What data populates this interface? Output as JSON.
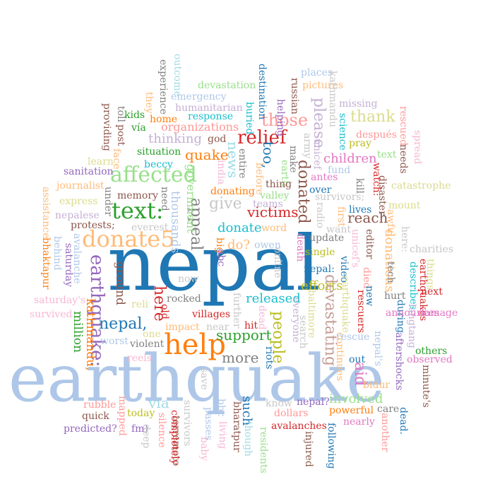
{
  "cloud": {
    "words": [
      {
        "id": "w-nepal",
        "text": "nepal",
        "color": "#1f77b4"
      },
      {
        "id": "w-earthquake",
        "text": "earthquake",
        "color": "#aec7e8"
      },
      {
        "id": "w-help",
        "text": "help",
        "color": "#ff7f0e"
      },
      {
        "id": "w-text",
        "text": "text:",
        "color": "#2ca02c"
      },
      {
        "id": "w-donate5",
        "text": "donate5",
        "color": "#ffbb78"
      },
      {
        "id": "w-affected",
        "text": "affected",
        "color": "#98df8a"
      },
      {
        "id": "w-earthquake-colon",
        "text": "earthquake:",
        "color": "#9467bd"
      },
      {
        "id": "w-relief",
        "text": "relief",
        "color": "#d62728"
      },
      {
        "id": "w-those",
        "text": "those",
        "color": "#ff9896"
      },
      {
        "id": "w-please",
        "text": "please",
        "color": "#c5b0d5"
      },
      {
        "id": "w-donated",
        "text": "donated",
        "color": "#8c564b"
      },
      {
        "id": "w-devastating",
        "text": "devastating",
        "color": "#c49c94"
      },
      {
        "id": "w-thank",
        "text": "thank",
        "color": "#dbdb8d"
      },
      {
        "id": "w-appeal",
        "text": "appeal",
        "color": "#7f7f7f"
      },
      {
        "id": "w-give",
        "text": "give",
        "color": "#c7c7c7"
      },
      {
        "id": "w-thinking",
        "text": "thinking",
        "color": "#c5b0d5"
      },
      {
        "id": "w-quake",
        "text": "quake",
        "color": "#ff7f0e"
      },
      {
        "id": "w-news",
        "text": "news",
        "color": "#9edae5"
      },
      {
        "id": "w-too",
        "text": "too,",
        "color": "#1f77b4"
      },
      {
        "id": "w-victims",
        "text": "victims",
        "color": "#d62728"
      },
      {
        "id": "w-donate",
        "text": "donate",
        "color": "#17becf"
      },
      {
        "id": "w-reach",
        "text": "reach",
        "color": "#8c564b"
      },
      {
        "id": "w-nepal-comma",
        "text": "nepal,",
        "color": "#1f77b4"
      },
      {
        "id": "w-here",
        "text": "here",
        "color": "#d62728"
      },
      {
        "id": "w-people",
        "text": "people",
        "color": "#bcbd22"
      },
      {
        "id": "w-support",
        "text": "support",
        "color": "#2ca02c"
      },
      {
        "id": "w-more",
        "text": "more",
        "color": "#7f7f7f"
      },
      {
        "id": "w-via",
        "text": "via",
        "color": "#9edae5"
      },
      {
        "id": "w-aid",
        "text": "aid",
        "color": "#e377c2"
      },
      {
        "id": "w-children",
        "text": "children",
        "color": "#e377c2"
      },
      {
        "id": "w-involved",
        "text": "involved",
        "color": "#98df8a"
      },
      {
        "id": "w-efforts",
        "text": "efforts",
        "color": "#bcbd22"
      },
      {
        "id": "w-donations",
        "text": "donations",
        "color": "#ffbb78"
      },
      {
        "id": "w-released",
        "text": "released",
        "color": "#17becf"
      },
      {
        "id": "w-million",
        "text": "million",
        "color": "#2ca02c"
      },
      {
        "id": "w-kathmandu-comma",
        "text": "kathmandu,",
        "color": "#ff7f0e"
      },
      {
        "id": "w-ground",
        "text": "ground",
        "color": "#8c564b"
      },
      {
        "id": "w-thousands",
        "text": "thousands",
        "color": "#aec7e8"
      },
      {
        "id": "w-government",
        "text": "government",
        "color": "#98df8a"
      },
      {
        "id": "w-organizations",
        "text": "organizations",
        "color": "#ff9896"
      },
      {
        "id": "w-destination",
        "text": "destination",
        "color": "#1f77b4"
      },
      {
        "id": "w-devastation",
        "text": "devastation",
        "color": "#98df8a"
      },
      {
        "id": "w-emergency",
        "text": "emergency",
        "color": "#aec7e8"
      },
      {
        "id": "w-humanitarian",
        "text": "humanitarian",
        "color": "#c5b0d5"
      },
      {
        "id": "w-response",
        "text": "response",
        "color": "#17becf"
      },
      {
        "id": "w-places",
        "text": "places",
        "color": "#aec7e8"
      },
      {
        "id": "w-pictures",
        "text": "pictures",
        "color": "#ffbb78"
      },
      {
        "id": "w-missing",
        "text": "missing",
        "color": "#c5b0d5"
      },
      {
        "id": "w-despues",
        "text": "después",
        "color": "#ff9896"
      },
      {
        "id": "w-rescued",
        "text": "rescued",
        "color": "#ff9896"
      },
      {
        "id": "w-spread",
        "text": "spread",
        "color": "#f7b6d2"
      },
      {
        "id": "w-outcome",
        "text": "outcome",
        "color": "#9edae5"
      },
      {
        "id": "w-experience",
        "text": "experience",
        "color": "#7f7f7f"
      },
      {
        "id": "w-they",
        "text": "they",
        "color": "#ffbb78"
      },
      {
        "id": "w-kids",
        "text": "kids",
        "color": "#2ca02c"
      },
      {
        "id": "w-via-2",
        "text": "vía",
        "color": "#2ca02c"
      },
      {
        "id": "w-home",
        "text": "home",
        "color": "#ff7f0e"
      },
      {
        "id": "w-situation",
        "text": "situation",
        "color": "#2ca02c"
      },
      {
        "id": "w-beccy",
        "text": "beccy",
        "color": "#17becf"
      },
      {
        "id": "w-god",
        "text": "god",
        "color": "#8c564b"
      },
      {
        "id": "w-buried",
        "text": "buried",
        "color": "#17becf"
      },
      {
        "id": "w-helping",
        "text": "helping",
        "color": "#9467bd"
      },
      {
        "id": "w-russian",
        "text": "russian",
        "color": "#8c564b"
      },
      {
        "id": "w-kathmandu",
        "text": "kathmandu",
        "color": "#c7c7c7"
      },
      {
        "id": "w-army",
        "text": "army",
        "color": "#c7c7c7"
      },
      {
        "id": "w-science",
        "text": "science",
        "color": "#17becf"
      },
      {
        "id": "w-pray",
        "text": "pray",
        "color": "#bcbd22"
      },
      {
        "id": "w-text-plain",
        "text": "text",
        "color": "#98df8a"
      },
      {
        "id": "w-needs",
        "text": "needs",
        "color": "#8c564b"
      },
      {
        "id": "w-post",
        "text": "post",
        "color": "#8c564b"
      },
      {
        "id": "w-toll",
        "text": "toll",
        "color": "#7f7f7f"
      },
      {
        "id": "w-providing",
        "text": "providing",
        "color": "#8c564b"
      },
      {
        "id": "w-face",
        "text": "face",
        "color": "#ffbb78"
      },
      {
        "id": "w-learn",
        "text": "learn",
        "color": "#dbdb8d"
      },
      {
        "id": "w-sanitation",
        "text": "sanitation",
        "color": "#9467bd"
      },
      {
        "id": "w-journalist",
        "text": "journalist",
        "color": "#ffbb78"
      },
      {
        "id": "w-express",
        "text": "express",
        "color": "#dbdb8d"
      },
      {
        "id": "w-nepalese",
        "text": "nepalese",
        "color": "#c5b0d5"
      },
      {
        "id": "w-protests",
        "text": "protests;",
        "color": "#8c564b"
      },
      {
        "id": "w-memory",
        "text": "memory",
        "color": "#8c564b"
      },
      {
        "id": "w-under",
        "text": "under",
        "color": "#7f7f7f"
      },
      {
        "id": "w-need",
        "text": "need",
        "color": "#7f7f7f"
      },
      {
        "id": "w-everest",
        "text": "everest",
        "color": "#c7c7c7"
      },
      {
        "id": "w-india",
        "text": "india",
        "color": "#f7b6d2"
      },
      {
        "id": "w-entire",
        "text": "entire",
        "color": "#7f7f7f"
      },
      {
        "id": "w-before",
        "text": "before",
        "color": "#ffbb78"
      },
      {
        "id": "w-earth",
        "text": "earth",
        "color": "#98df8a"
      },
      {
        "id": "w-make",
        "text": "make",
        "color": "#7f7f7f"
      },
      {
        "id": "w-unicef",
        "text": "unicef",
        "color": "#c5b0d5"
      },
      {
        "id": "w-fund",
        "text": "fund",
        "color": "#aec7e8"
      },
      {
        "id": "w-antes",
        "text": "antes",
        "color": "#e377c2"
      },
      {
        "id": "w-kill",
        "text": "kill",
        "color": "#7f7f7f"
      },
      {
        "id": "w-watch",
        "text": "watch:",
        "color": "#d62728"
      },
      {
        "id": "w-disaster",
        "text": "disaster",
        "color": "#8c564b"
      },
      {
        "id": "w-catastrophe",
        "text": "catastrophe",
        "color": "#dbdb8d"
      },
      {
        "id": "w-mount",
        "text": "mount",
        "color": "#dbdb8d"
      },
      {
        "id": "w-donating",
        "text": "donating",
        "color": "#ff7f0e"
      },
      {
        "id": "w-thing",
        "text": "thing",
        "color": "#8c564b"
      },
      {
        "id": "w-valley",
        "text": "valley",
        "color": "#98df8a"
      },
      {
        "id": "w-teams",
        "text": "teams",
        "color": "#c5b0d5"
      },
      {
        "id": "w-over",
        "text": "over",
        "color": "#1f77b4"
      },
      {
        "id": "w-survivors-semi",
        "text": "survivors;",
        "color": "#c7c7c7"
      },
      {
        "id": "w-radio",
        "text": "radio",
        "color": "#c7c7c7"
      },
      {
        "id": "w-lives",
        "text": "lives",
        "color": "#1f77b4"
      },
      {
        "id": "w-first",
        "text": "first",
        "color": "#ffbb78"
      },
      {
        "id": "w-want",
        "text": "want",
        "color": "#c7c7c7"
      },
      {
        "id": "w-awful",
        "text": "awful",
        "color": "#ffbb78"
      },
      {
        "id": "w-word",
        "text": "word",
        "color": "#ffbb78"
      },
      {
        "id": "w-big",
        "text": "big",
        "color": "#ff7f0e"
      },
      {
        "id": "w-do",
        "text": "do?",
        "color": "#ffbb78"
      },
      {
        "id": "w-owen",
        "text": "owen",
        "color": "#aec7e8"
      },
      {
        "id": "w-abc",
        "text": "abc",
        "color": "#9467bd"
      },
      {
        "id": "w-death",
        "text": "death",
        "color": "#e377c2"
      },
      {
        "id": "w-update",
        "text": "update",
        "color": "#7f7f7f"
      },
      {
        "id": "w-unicefs",
        "text": "unicef's",
        "color": "#f7b6d2"
      },
      {
        "id": "w-editor",
        "text": "editor",
        "color": "#8c564b"
      },
      {
        "id": "w-here-colon",
        "text": "here:",
        "color": "#c7c7c7"
      },
      {
        "id": "w-charities",
        "text": "charities",
        "color": "#c7c7c7"
      },
      {
        "id": "w-single",
        "text": "single",
        "color": "#bcbd22"
      },
      {
        "id": "w-online",
        "text": "online",
        "color": "#c7c7c7"
      },
      {
        "id": "w-tech",
        "text": "tech",
        "color": "#7f7f7f"
      },
      {
        "id": "w-died",
        "text": "died",
        "color": "#ff9896"
      },
      {
        "id": "w-earthquakes",
        "text": "earthquakes",
        "color": "#d62728"
      },
      {
        "id": "w-describes",
        "text": "describes",
        "color": "#17becf"
      },
      {
        "id": "w-things",
        "text": "things",
        "color": "#dbdb8d"
      },
      {
        "id": "w-next",
        "text": "next",
        "color": "#d62728"
      },
      {
        "id": "w-nepal-colon",
        "text": "nepal:",
        "color": "#1f77b4"
      },
      {
        "id": "w-video",
        "text": "video",
        "color": "#1f77b4"
      },
      {
        "id": "w-new",
        "text": "new",
        "color": "#1f77b4"
      },
      {
        "id": "w-hurt",
        "text": "hurt",
        "color": "#7f7f7f"
      },
      {
        "id": "w-rescuers",
        "text": "rescuers",
        "color": "#d62728"
      },
      {
        "id": "w-during",
        "text": "during",
        "color": "#1f77b4"
      },
      {
        "id": "w-announces",
        "text": "announces",
        "color": "#e377c2"
      },
      {
        "id": "w-langtang",
        "text": "langtang",
        "color": "#c5b0d5"
      },
      {
        "id": "w-damage",
        "text": "damage",
        "color": "#e377c2"
      },
      {
        "id": "w-now",
        "text": "now",
        "color": "#c7c7c7"
      },
      {
        "id": "w-rocked",
        "text": "rocked",
        "color": "#7f7f7f"
      },
      {
        "id": "w-villages",
        "text": "villages",
        "color": "#d62728"
      },
      {
        "id": "w-further",
        "text": "further",
        "color": "#c7c7c7"
      },
      {
        "id": "w-everyone",
        "text": "everyone",
        "color": "#c5b0d5"
      },
      {
        "id": "w-baltimore",
        "text": "baltimore",
        "color": "#dbdb8d"
      },
      {
        "id": "w-earthquake-comma",
        "text": "earthquake,",
        "color": "#dbdb8d"
      },
      {
        "id": "w-saturdays",
        "text": "saturday's",
        "color": "#f7b6d2"
      },
      {
        "id": "w-survived",
        "text": "survived",
        "color": "#f7b6d2"
      },
      {
        "id": "w-reli",
        "text": "reli",
        "color": "#dbdb8d"
      },
      {
        "id": "w-old",
        "text": "old",
        "color": "#d62728"
      },
      {
        "id": "w-impact",
        "text": "impact",
        "color": "#ffbb78"
      },
      {
        "id": "w-near",
        "text": "near",
        "color": "#c7c7c7"
      },
      {
        "id": "w-dead",
        "text": "dead",
        "color": "#f7b6d2"
      },
      {
        "id": "w-hit",
        "text": "hit",
        "color": "#d62728"
      },
      {
        "id": "w-search",
        "text": "search",
        "color": "#c7c7c7"
      },
      {
        "id": "w-rescue",
        "text": "rescue",
        "color": "#aec7e8"
      },
      {
        "id": "w-continues",
        "text": "continues",
        "color": "#ffbb78"
      },
      {
        "id": "w-nepals",
        "text": "nepal's",
        "color": "#aec7e8"
      },
      {
        "id": "w-aftershocks",
        "text": "aftershocks",
        "color": "#9467bd"
      },
      {
        "id": "w-minutes",
        "text": "minute's",
        "color": "#8c564b"
      },
      {
        "id": "w-others",
        "text": "others",
        "color": "#2ca02c"
      },
      {
        "id": "w-observed",
        "text": "observed",
        "color": "#e377c2"
      },
      {
        "id": "w-one",
        "text": "one",
        "color": "#dbdb8d"
      },
      {
        "id": "w-worst",
        "text": "worst",
        "color": "#aec7e8"
      },
      {
        "id": "w-violent",
        "text": "violent",
        "color": "#7f7f7f"
      },
      {
        "id": "w-reels",
        "text": "reels",
        "color": "#f7b6d2"
      },
      {
        "id": "w-riots",
        "text": "riots",
        "color": "#1f77b4"
      },
      {
        "id": "w-out",
        "text": "out",
        "color": "#1f77b4"
      },
      {
        "id": "w-bidur",
        "text": "bidur",
        "color": "#ffbb78"
      },
      {
        "id": "w-dead-dot",
        "text": "dead.",
        "color": "#1f77b4"
      },
      {
        "id": "w-care",
        "text": "care",
        "color": "#7f7f7f"
      },
      {
        "id": "w-another",
        "text": "another",
        "color": "#ff9896"
      },
      {
        "id": "w-rubble",
        "text": "rubble",
        "color": "#ff9896"
      },
      {
        "id": "w-quick",
        "text": "quick",
        "color": "#8c564b"
      },
      {
        "id": "w-today",
        "text": "today",
        "color": "#bcbd22"
      },
      {
        "id": "w-mapped",
        "text": "mapped",
        "color": "#ff9896"
      },
      {
        "id": "w-predicted",
        "text": "predicted?",
        "color": "#9467bd"
      },
      {
        "id": "w-fm",
        "text": "fm)",
        "color": "#9467bd"
      },
      {
        "id": "w-deep",
        "text": "deep",
        "color": "#c7c7c7"
      },
      {
        "id": "w-silence",
        "text": "silence",
        "color": "#ff9896"
      },
      {
        "id": "w-terremoto",
        "text": "terremoto",
        "color": "#8c564b"
      },
      {
        "id": "w-completely",
        "text": "completely",
        "color": "#d62728"
      },
      {
        "id": "w-survivors",
        "text": "survivors",
        "color": "#c7c7c7"
      },
      {
        "id": "w-save",
        "text": "save",
        "color": "#c7c7c7"
      },
      {
        "id": "w-baby",
        "text": "baby",
        "color": "#f7b6d2"
      },
      {
        "id": "w-passes",
        "text": "passes",
        "color": "#aec7e8"
      },
      {
        "id": "w-bbc",
        "text": "bbc",
        "color": "#aec7e8"
      },
      {
        "id": "w-living",
        "text": "living",
        "color": "#f7b6d2"
      },
      {
        "id": "w-bharatpur",
        "text": "bharatpur",
        "color": "#8c564b"
      },
      {
        "id": "w-such",
        "text": "such",
        "color": "#1f77b4"
      },
      {
        "id": "w-though",
        "text": "though",
        "color": "#9edae5"
      },
      {
        "id": "w-residents",
        "text": "residents",
        "color": "#98df8a"
      },
      {
        "id": "w-know",
        "text": "know",
        "color": "#c7c7c7"
      },
      {
        "id": "w-dollars",
        "text": "dollars",
        "color": "#ff9896"
      },
      {
        "id": "w-avalanches",
        "text": "avalanches",
        "color": "#d62728"
      },
      {
        "id": "w-nepal-q",
        "text": "nepal?",
        "color": "#9467bd"
      },
      {
        "id": "w-injured",
        "text": "injured",
        "color": "#8c564b"
      },
      {
        "id": "w-powerful",
        "text": "powerful",
        "color": "#ff7f0e"
      },
      {
        "id": "w-nearly",
        "text": "nearly",
        "color": "#e377c2"
      },
      {
        "id": "w-following",
        "text": "following",
        "color": "#1f77b4"
      },
      {
        "id": "w-assistance",
        "text": "assistance",
        "color": "#ffbb78"
      },
      {
        "id": "w-behind",
        "text": "behind",
        "color": "#aec7e8"
      },
      {
        "id": "w-bhaktapur",
        "text": "bhaktapur",
        "color": "#ff7f0e"
      },
      {
        "id": "w-saturday",
        "text": "saturday",
        "color": "#9467bd"
      },
      {
        "id": "w-avalanche",
        "text": "avalanche",
        "color": "#aec7e8"
      }
    ]
  }
}
